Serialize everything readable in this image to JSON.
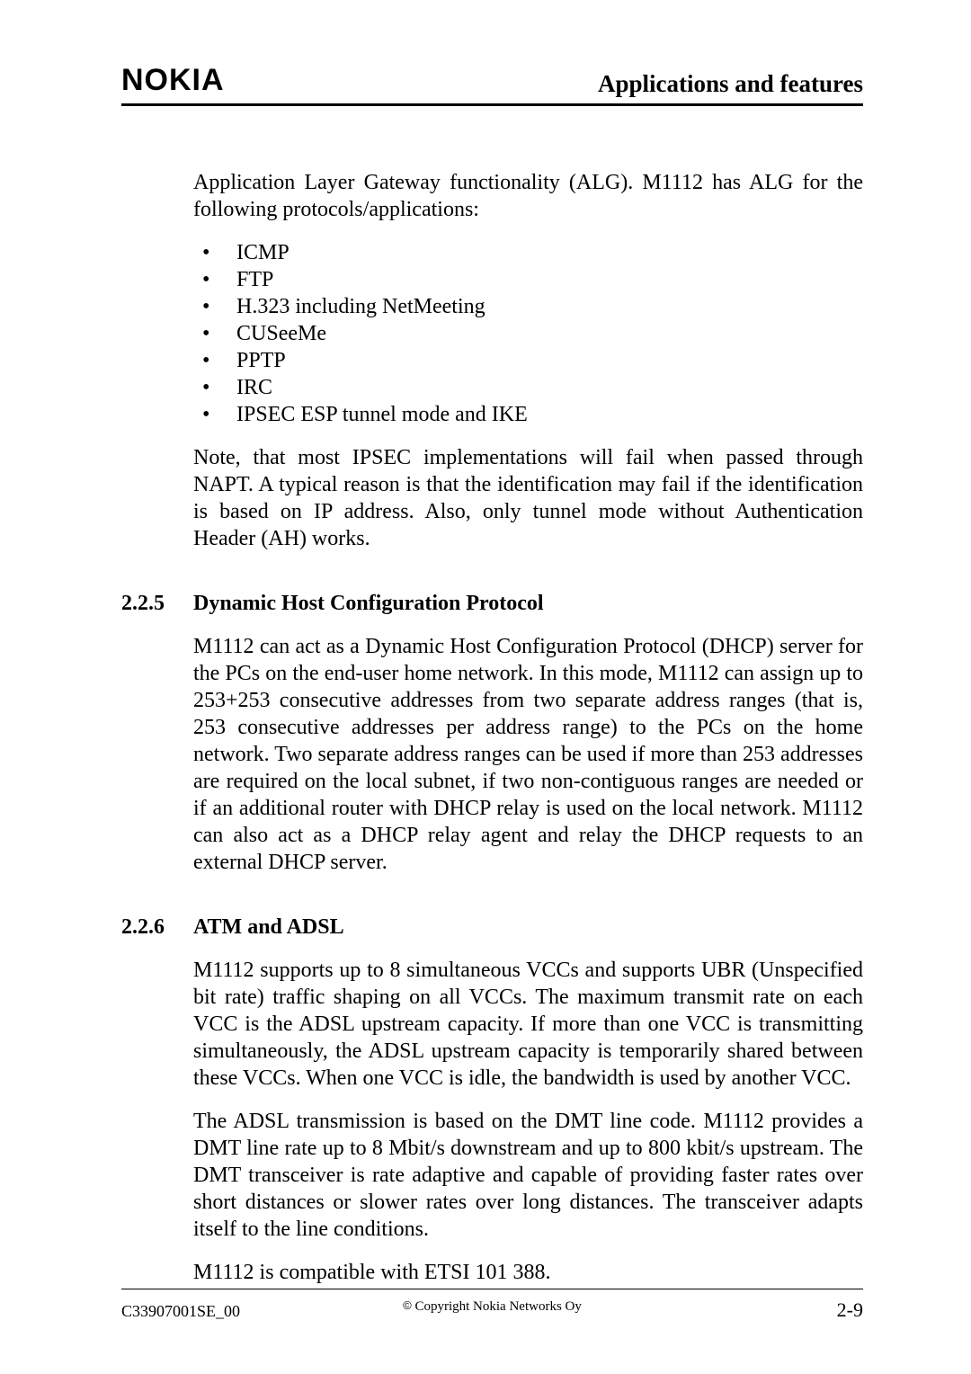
{
  "header": {
    "logo_text": "NOKIA",
    "title": "Applications and features"
  },
  "body": {
    "intro": "Application Layer Gateway functionality (ALG). M1112 has ALG for the following protocols/applications:",
    "bullets": [
      "ICMP",
      "FTP",
      "H.323 including NetMeeting",
      "CUSeeMe",
      "PPTP",
      "IRC",
      "IPSEC ESP tunnel mode and IKE"
    ],
    "note": "Note, that most IPSEC implementations will fail when passed through NAPT.  A typical reason is that the identification may fail if the identification is based on IP address. Also, only tunnel mode without Authentication Header (AH) works.",
    "sections": [
      {
        "num": "2.2.5",
        "title": "Dynamic Host Configuration Protocol",
        "paras": [
          "M1112 can act as a Dynamic Host Configuration Protocol (DHCP) server for the PCs on the end-user home network. In this mode, M1112 can assign up to 253+253 consecutive addresses from two separate address ranges (that is, 253 consecutive addresses per address range) to the PCs on the home network. Two separate address ranges can be used if more than 253 addresses are required on the local subnet, if two non-contiguous ranges are needed or if an additional router with DHCP relay is used on the local network. M1112 can also act as a DHCP relay agent and relay the DHCP requests to an external DHCP server."
        ]
      },
      {
        "num": "2.2.6",
        "title": "ATM and ADSL",
        "paras": [
          "M1112 supports up to 8 simultaneous VCCs and supports UBR (Unspecified bit rate) traffic shaping on all VCCs. The maximum transmit rate on each VCC is the ADSL upstream capacity. If more than one VCC is transmitting simultaneously, the ADSL upstream capacity is temporarily shared between these VCCs. When one VCC is idle, the bandwidth is used by another VCC.",
          "The ADSL transmission is based on the DMT line code. M1112 provides a DMT line rate up to 8 Mbit/s downstream and up to 800 kbit/s upstream. The DMT transceiver is rate adaptive and capable of providing faster rates over short distances or slower rates over long distances. The transceiver adapts itself to the line conditions.",
          "M1112 is compatible with ETSI 101 388."
        ]
      }
    ]
  },
  "footer": {
    "doc_id": "C33907001SE_00",
    "copyright": " Copyright Nokia Networks Oy",
    "page_num": "2-9"
  }
}
